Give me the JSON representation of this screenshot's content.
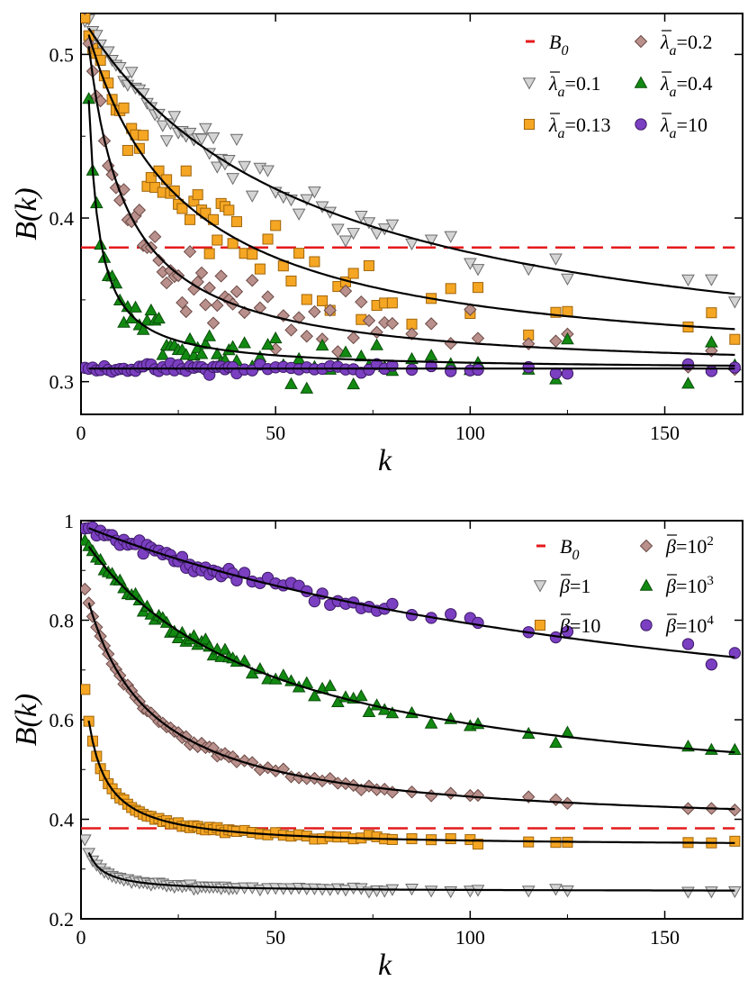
{
  "chart_data": [
    {
      "type": "scatter",
      "title": "",
      "xlabel": "k",
      "ylabel": "B(k)",
      "xlim": [
        0,
        170
      ],
      "ylim": [
        0.28,
        0.525
      ],
      "xticks": [
        0,
        50,
        100,
        150
      ],
      "xtick_labels": [
        "0",
        "50",
        "100",
        "150"
      ],
      "yticks": [
        0.3,
        0.4,
        0.5
      ],
      "ytick_labels": [
        "0.3",
        "0.4",
        "0.5"
      ],
      "legend_position": "top-right",
      "reference_line": {
        "name": "B_0",
        "label_main": "B",
        "label_sub": "0",
        "value": 0.382,
        "color": "#e41a1c",
        "style": "dashed"
      },
      "series": [
        {
          "name": "λ_a=0.1",
          "label_main": "λ",
          "label_sub": "a",
          "label_value": "=0.1",
          "marker": "triangle-down",
          "color": "#d4d4d4",
          "stroke": "#6a6a6a",
          "fit": {
            "type": "power-decay",
            "a": 0.516,
            "c": 0.295,
            "k0": 2,
            "tau": 60
          }
        },
        {
          "name": "λ_a=0.13",
          "label_main": "λ",
          "label_sub": "a",
          "label_value": "=0.13",
          "marker": "square",
          "color": "#f5a623",
          "stroke": "#a0660d",
          "fit": {
            "type": "power-decay",
            "a": 0.512,
            "c": 0.305,
            "k0": 2,
            "tau": 25
          }
        },
        {
          "name": "λ_a=0.2",
          "label_main": "λ",
          "label_sub": "a",
          "label_value": "=0.2",
          "marker": "diamond",
          "color": "#b9908b",
          "stroke": "#6d4b47",
          "fit": {
            "type": "power-decay",
            "a": 0.505,
            "c": 0.305,
            "k0": 2,
            "tau": 10
          }
        },
        {
          "name": "λ_a=0.4",
          "label_main": "λ",
          "label_sub": "a",
          "label_value": "=0.4",
          "marker": "triangle-up",
          "color": "#128a12",
          "stroke": "#0a4d0a",
          "fit": {
            "type": "power-decay",
            "a": 0.472,
            "c": 0.307,
            "k0": 2,
            "tau": 2.8
          }
        },
        {
          "name": "λ_a=10",
          "label_main": "λ",
          "label_sub": "a",
          "label_value": "=10",
          "marker": "circle",
          "color": "#7b3fc1",
          "stroke": "#3c1a66",
          "fit": {
            "type": "constant",
            "c": 0.308
          }
        }
      ]
    },
    {
      "type": "scatter",
      "title": "",
      "xlabel": "k",
      "ylabel": "B(k)",
      "xlim": [
        0,
        170
      ],
      "ylim": [
        0.2,
        1.0
      ],
      "xticks": [
        0,
        50,
        100,
        150
      ],
      "xtick_labels": [
        "0",
        "50",
        "100",
        "150"
      ],
      "yticks": [
        0.2,
        0.4,
        0.6,
        0.8,
        1.0
      ],
      "ytick_labels": [
        "0.2",
        "0.4",
        "0.6",
        "0.8",
        "1"
      ],
      "legend_position": "top-right",
      "reference_line": {
        "name": "B_0",
        "label_main": "B",
        "label_sub": "0",
        "value": 0.382,
        "color": "#e41a1c",
        "style": "dashed"
      },
      "series": [
        {
          "name": "β=1",
          "label_main": "β",
          "label_value": "=1",
          "label_sup": "",
          "marker": "triangle-down",
          "color": "#d4d4d4",
          "stroke": "#6a6a6a",
          "fit": {
            "type": "power-decay",
            "a": 0.333,
            "c": 0.255,
            "k0": 2,
            "tau": 4
          }
        },
        {
          "name": "β=10",
          "label_main": "β",
          "label_value": "=10",
          "label_sup": "",
          "marker": "square",
          "color": "#f5a623",
          "stroke": "#a0660d",
          "fit": {
            "type": "power-decay",
            "a": 0.598,
            "c": 0.345,
            "k0": 2,
            "tau": 5
          }
        },
        {
          "name": "β=10^2",
          "label_main": "β",
          "label_value": "=10",
          "label_sup": "2",
          "marker": "diamond",
          "color": "#b9908b",
          "stroke": "#6d4b47",
          "fit": {
            "type": "power-decay",
            "a": 0.835,
            "c": 0.378,
            "k0": 2,
            "tau": 17
          }
        },
        {
          "name": "β=10^3",
          "label_main": "β",
          "label_value": "=10",
          "label_sup": "3",
          "marker": "triangle-up",
          "color": "#128a12",
          "stroke": "#0a4d0a",
          "fit": {
            "type": "power-decay",
            "a": 0.948,
            "c": 0.41,
            "k0": 2,
            "tau": 50
          }
        },
        {
          "name": "β=10^4",
          "label_main": "β",
          "label_value": "=10",
          "label_sup": "4",
          "marker": "circle",
          "color": "#7b3fc1",
          "stroke": "#3c1a66",
          "fit": {
            "type": "power-decay",
            "a": 0.985,
            "c": 0.46,
            "k0": 2,
            "tau": 170
          }
        }
      ]
    }
  ],
  "noise": {
    "panel1": [
      0.012,
      0.014,
      0.015,
      0.01,
      0.0025
    ],
    "panel2": [
      0.003,
      0.004,
      0.006,
      0.012,
      0.012
    ]
  }
}
